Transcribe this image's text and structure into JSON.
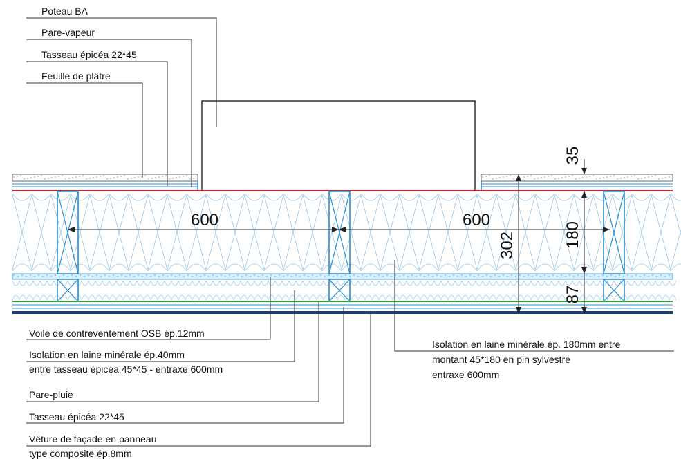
{
  "labels": {
    "poteau": "Poteau BA",
    "pare_vapeur": "Pare-vapeur",
    "tasseau_int": "Tasseau épicéa 22*45",
    "feuille_platre": "Feuille de plâtre",
    "osb": "Voile de contreventement OSB ép.12mm",
    "iso40_line1": "Isolation en laine minérale ép.40mm",
    "iso40_line2": "entre tasseau épicéa 45*45 - entraxe 600mm",
    "pare_pluie": "Pare-pluie",
    "tasseau_ext": "Tasseau épicéa 22*45",
    "veture_line1": "Vêture de façade en panneau",
    "veture_line2": "type composite ép.8mm",
    "iso180_line1": "Isolation en laine minérale ép. 180mm entre",
    "iso180_line2": "montant  45*180 en pin sylvestre",
    "iso180_line3": "entraxe 600mm"
  },
  "dimensions": {
    "spacing_left": "600",
    "spacing_right": "600",
    "total": "302",
    "stud": "180",
    "outer": "87",
    "finish": "35"
  },
  "colors": {
    "vapour_barrier": "#d8202a",
    "rain_screen": "#2e9e3e",
    "cladding": "#1f3f6b",
    "timber": "#2a8fd0",
    "insulation": "#9cc9e6"
  }
}
